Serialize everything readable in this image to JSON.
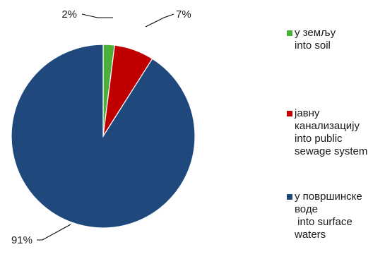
{
  "chart_data": {
    "type": "pie",
    "slices": [
      {
        "name_lines": [
          "у земљу",
          "into soil"
        ],
        "value": 2,
        "label": "2%",
        "color": "#4caf3b"
      },
      {
        "name_lines": [
          "јавну",
          "канализацију",
          "into public",
          "sewage system"
        ],
        "value": 7,
        "label": "7%",
        "color": "#c00000"
      },
      {
        "name_lines": [
          "у површинске",
          "воде",
          " into surface",
          "waters"
        ],
        "value": 91,
        "label": "91%",
        "color": "#1f497d"
      }
    ],
    "legend_position": "right"
  }
}
